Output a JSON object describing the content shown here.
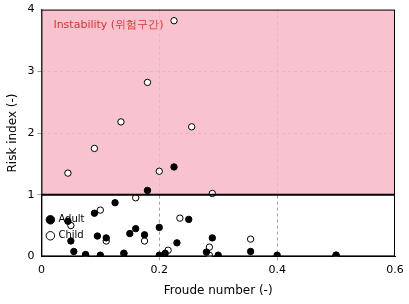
{
  "chart_data": {
    "type": "scatter",
    "xlabel": "Froude number (-)",
    "ylabel": "Risk index (-)",
    "xlim": [
      0,
      0.6
    ],
    "xticks": [
      0,
      0.2,
      0.4,
      0.6
    ],
    "ylim": [
      0,
      4
    ],
    "yticks": [
      0,
      1,
      2,
      3,
      4
    ],
    "grid": true,
    "legend": "upper right",
    "region": {
      "from": 1,
      "label": "Instability (위험구간)",
      "color": "#f7b8c5",
      "text_color": "#e03030"
    },
    "series": [
      {
        "name": "Adult",
        "color": "#000000",
        "marker": "circle",
        "x": [
          0.045,
          0.05,
          0.055,
          0.075,
          0.09,
          0.095,
          0.1,
          0.11,
          0.125,
          0.14,
          0.15,
          0.16,
          0.175,
          0.18,
          0.2,
          0.2,
          0.21,
          0.225,
          0.23,
          0.25,
          0.28,
          0.29,
          0.3,
          0.355,
          0.4,
          0.5
        ],
        "values": [
          0.57,
          0.25,
          0.08,
          0.03,
          0.7,
          0.33,
          0.02,
          0.3,
          0.87,
          0.05,
          0.37,
          0.45,
          0.35,
          1.07,
          0.47,
          0.02,
          0.05,
          1.45,
          0.22,
          0.6,
          0.07,
          0.3,
          0.02,
          0.08,
          0.02,
          0.02
        ]
      },
      {
        "name": "Child",
        "color": "#000000",
        "marker": "hollow",
        "x": [
          0.045,
          0.05,
          0.075,
          0.09,
          0.1,
          0.11,
          0.135,
          0.14,
          0.16,
          0.175,
          0.18,
          0.2,
          0.215,
          0.225,
          0.235,
          0.255,
          0.285,
          0.285,
          0.29,
          0.355,
          0.5
        ],
        "values": [
          1.35,
          0.5,
          0.02,
          1.75,
          0.75,
          0.25,
          2.18,
          0.05,
          0.95,
          0.25,
          2.82,
          1.38,
          0.1,
          3.82,
          0.62,
          2.1,
          0.15,
          0.02,
          1.02,
          0.28,
          0.02
        ]
      }
    ]
  }
}
